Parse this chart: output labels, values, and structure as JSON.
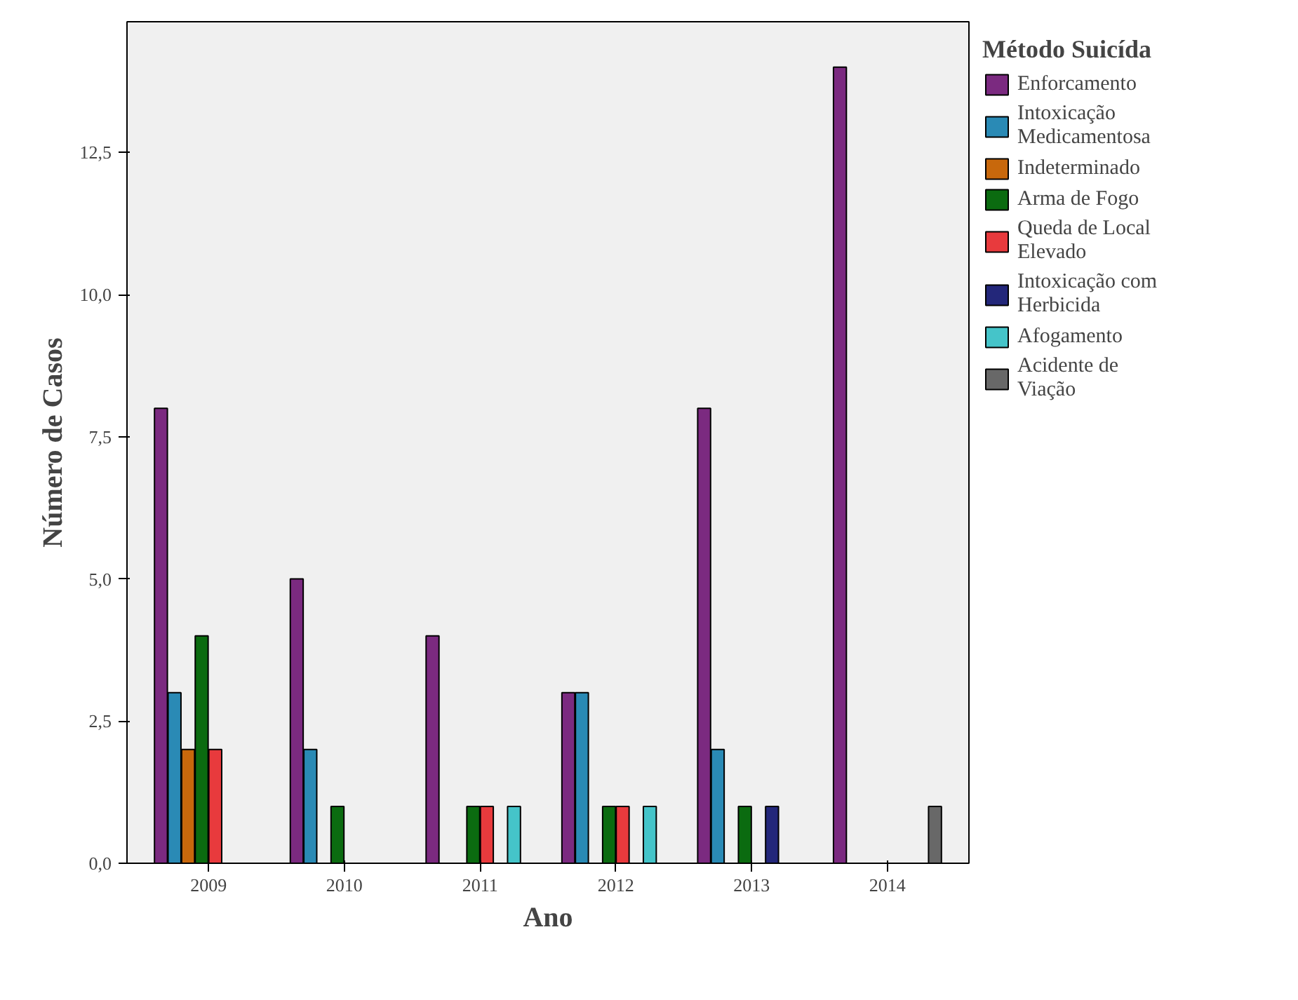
{
  "chart_data": {
    "type": "bar",
    "xlabel": "Ano",
    "ylabel": "Número de Casos",
    "legend_title": "Método Suicída",
    "categories": [
      "2009",
      "2010",
      "2011",
      "2012",
      "2013",
      "2014"
    ],
    "series": [
      {
        "name": "Enforcamento",
        "color": "#7b2a80",
        "values": [
          8,
          5,
          4,
          3,
          8,
          14
        ]
      },
      {
        "name": "Intoxicação Medicamentosa",
        "color": "#2a8ab5",
        "values": [
          3,
          2,
          null,
          3,
          2,
          null
        ]
      },
      {
        "name": "Indeterminado",
        "color": "#c8680c",
        "values": [
          2,
          null,
          null,
          null,
          null,
          null
        ]
      },
      {
        "name": "Arma de Fogo",
        "color": "#0b6b10",
        "values": [
          4,
          1,
          1,
          1,
          1,
          null
        ]
      },
      {
        "name": "Queda de Local Elevado",
        "color": "#e83a3d",
        "values": [
          2,
          null,
          1,
          1,
          null,
          null
        ]
      },
      {
        "name": "Intoxicação com Herbicida",
        "color": "#23277a",
        "values": [
          null,
          null,
          null,
          null,
          1,
          null
        ]
      },
      {
        "name": "Afogamento",
        "color": "#45c4c9",
        "values": [
          null,
          null,
          1,
          1,
          null,
          null
        ]
      },
      {
        "name": "Acidente de Viação",
        "color": "#686868",
        "values": [
          null,
          null,
          null,
          null,
          null,
          1
        ]
      }
    ],
    "ylim": [
      0,
      14.8
    ],
    "yticks": [
      {
        "value": 0,
        "label": "0,0"
      },
      {
        "value": 2.5,
        "label": "2,5"
      },
      {
        "value": 5,
        "label": "5,0"
      },
      {
        "value": 7.5,
        "label": "7,5"
      },
      {
        "value": 10,
        "label": "10,0"
      },
      {
        "value": 12.5,
        "label": "12,5"
      }
    ],
    "grid": false,
    "legend": "right"
  }
}
